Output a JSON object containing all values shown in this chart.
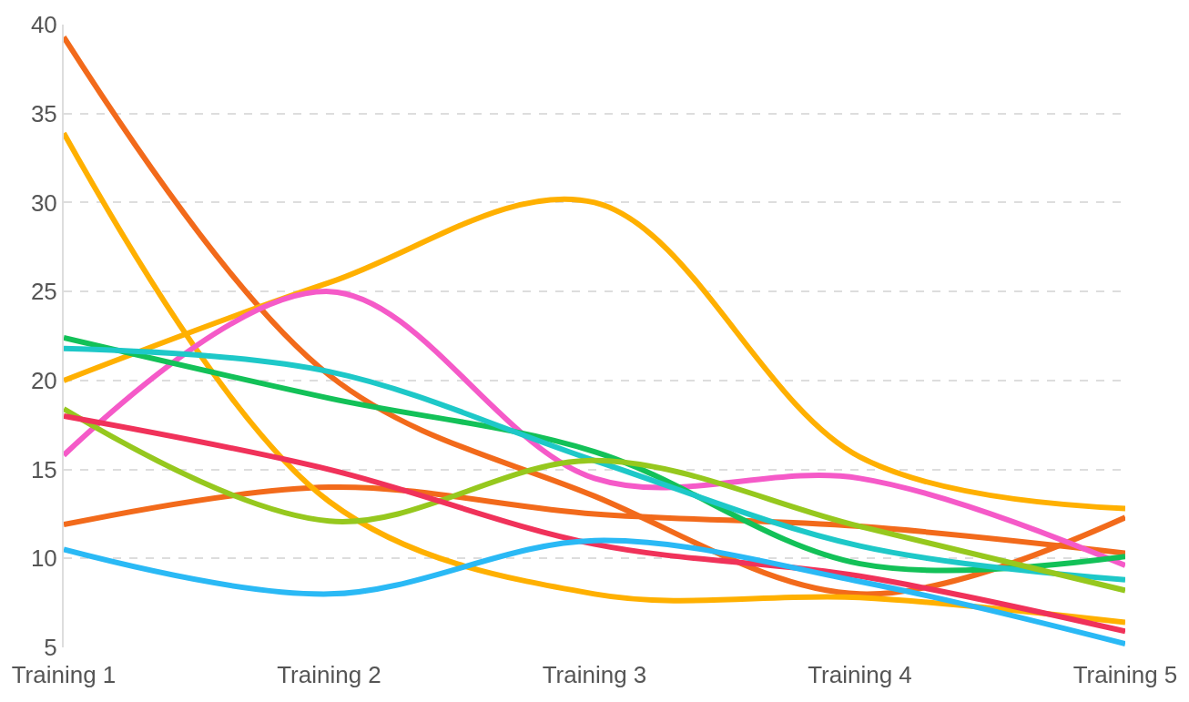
{
  "chart_data": {
    "type": "line",
    "categories": [
      "Training 1",
      "Training 2",
      "Training 3",
      "Training 4",
      "Training 5"
    ],
    "ylim": [
      5,
      40
    ],
    "yticks": [
      5,
      10,
      15,
      20,
      25,
      30,
      35,
      40
    ],
    "grid": "y",
    "marker": "none",
    "line_style": "solid",
    "series": [
      {
        "color": "#f26a1b",
        "values": [
          39.3,
          20.3,
          13.5,
          8.0,
          12.3
        ]
      },
      {
        "color": "#f26a1b",
        "values": [
          11.9,
          14.0,
          12.5,
          11.8,
          10.3
        ]
      },
      {
        "color": "#ffb000",
        "values": [
          33.9,
          13.2,
          8.0,
          7.8,
          6.4
        ]
      },
      {
        "color": "#ffb000",
        "values": [
          20.0,
          25.5,
          30.0,
          15.7,
          12.8
        ]
      },
      {
        "color": "#f55ac8",
        "values": [
          15.8,
          25.0,
          14.5,
          14.5,
          9.6
        ]
      },
      {
        "color": "#13c158",
        "values": [
          22.4,
          19.0,
          16.0,
          9.7,
          10.1
        ]
      },
      {
        "color": "#1ec8c8",
        "values": [
          21.8,
          20.5,
          15.5,
          10.7,
          8.8
        ]
      },
      {
        "color": "#96c81e",
        "values": [
          18.4,
          12.1,
          15.5,
          11.8,
          8.2
        ]
      },
      {
        "color": "#f0325a",
        "values": [
          18.0,
          15.0,
          10.8,
          9.0,
          5.9
        ]
      },
      {
        "color": "#2ab9f5",
        "values": [
          10.5,
          8.0,
          11.0,
          8.7,
          5.2
        ]
      }
    ]
  }
}
